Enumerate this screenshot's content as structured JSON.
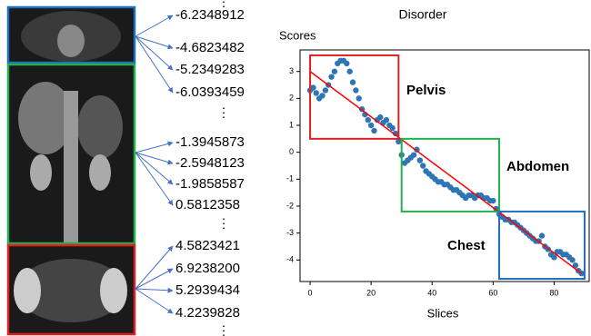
{
  "score_groups": [
    {
      "values": [
        "-6.2348912",
        "-4.6823482",
        "-5.2349283",
        "-6.0393459"
      ],
      "color": "#1f6fc0"
    },
    {
      "values": [
        "-1.3945873",
        "-2.5948123",
        "-1.9858587",
        "0.5812358"
      ],
      "color": "#22b04b"
    },
    {
      "values": [
        "4.5823421",
        "6.9238200",
        "5.2939434",
        "4.2239828"
      ],
      "color": "#e02020"
    }
  ],
  "separator": "⋮",
  "chart_data": {
    "type": "scatter",
    "title": "Disorder",
    "xlabel": "Slices",
    "ylabel": "Scores",
    "xlim": [
      -3.3,
      91.5
    ],
    "ylim": [
      -4.8,
      3.8
    ],
    "xticks": [
      0,
      20,
      40,
      60,
      80
    ],
    "yticks": [
      -4,
      -3,
      -2,
      -1,
      0,
      1,
      2,
      3
    ],
    "color": "#2e75b6",
    "x": [
      0,
      1,
      2,
      3,
      4,
      5,
      6,
      7,
      8,
      9,
      10,
      11,
      12,
      13,
      14,
      15,
      16,
      17,
      18,
      19,
      20,
      21,
      22,
      23,
      24,
      25,
      26,
      27,
      28,
      29,
      30,
      31,
      32,
      33,
      34,
      35,
      36,
      37,
      38,
      39,
      40,
      41,
      42,
      43,
      44,
      45,
      46,
      47,
      48,
      49,
      50,
      51,
      52,
      53,
      54,
      55,
      56,
      57,
      58,
      59,
      60,
      61,
      62,
      63,
      64,
      65,
      66,
      67,
      68,
      69,
      70,
      71,
      72,
      73,
      74,
      75,
      76,
      77,
      78,
      79,
      80,
      81,
      82,
      83,
      84,
      85,
      86,
      87,
      88,
      89
    ],
    "values": [
      2.3,
      2.4,
      2.2,
      2.0,
      2.1,
      2.3,
      2.5,
      2.8,
      3.0,
      3.3,
      3.4,
      3.4,
      3.3,
      3.0,
      2.6,
      2.3,
      2.0,
      1.6,
      1.4,
      1.2,
      1.0,
      0.8,
      1.2,
      1.3,
      1.1,
      1.2,
      1.0,
      0.9,
      0.7,
      0.4,
      -0.1,
      -0.4,
      -0.3,
      -0.2,
      -0.1,
      0.1,
      -0.3,
      -0.5,
      -0.7,
      -0.8,
      -0.9,
      -1.0,
      -1.1,
      -1.1,
      -1.2,
      -1.2,
      -1.3,
      -1.4,
      -1.4,
      -1.5,
      -1.6,
      -1.7,
      -1.6,
      -1.6,
      -1.7,
      -1.6,
      -1.6,
      -1.7,
      -1.7,
      -1.8,
      -1.8,
      -2.1,
      -2.3,
      -2.4,
      -2.5,
      -2.5,
      -2.6,
      -2.6,
      -2.7,
      -2.8,
      -2.9,
      -3.0,
      -3.1,
      -3.2,
      -3.3,
      -3.3,
      -3.1,
      -3.5,
      -3.6,
      -3.8,
      -3.9,
      -3.7,
      -3.7,
      -3.8,
      -3.8,
      -3.9,
      -4.0,
      -4.2,
      -4.4,
      -4.5
    ],
    "fit_line": {
      "x": [
        0,
        89
      ],
      "values": [
        3.0,
        -4.5
      ],
      "color": "#ff0000"
    },
    "regions": [
      {
        "label": "Pelvis",
        "color": "#e02020",
        "xlim": [
          0,
          29
        ],
        "ylim": [
          0.5,
          3.6
        ]
      },
      {
        "label": "Abdomen",
        "color": "#22b04b",
        "xlim": [
          30,
          62
        ],
        "ylim": [
          -2.2,
          0.5
        ]
      },
      {
        "label": "Chest",
        "color": "#1f6fc0",
        "xlim": [
          62,
          90
        ],
        "ylim": [
          -4.7,
          -2.2
        ]
      }
    ]
  }
}
